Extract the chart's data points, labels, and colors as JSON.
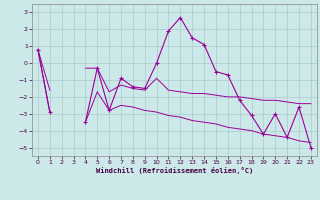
{
  "xlabel": "Windchill (Refroidissement éolien,°C)",
  "x_values": [
    0,
    1,
    2,
    3,
    4,
    5,
    6,
    7,
    8,
    9,
    10,
    11,
    12,
    13,
    14,
    15,
    16,
    17,
    18,
    19,
    20,
    21,
    22,
    23
  ],
  "main_line": [
    0.8,
    -2.9,
    null,
    null,
    -3.5,
    -0.3,
    -2.8,
    -0.9,
    -1.4,
    -1.5,
    0.0,
    1.9,
    2.7,
    1.5,
    1.1,
    -0.5,
    -0.7,
    -2.2,
    -3.1,
    -4.2,
    -3.0,
    -4.4,
    -2.6,
    -5.0
  ],
  "upper_line": [
    0.8,
    -1.6,
    null,
    null,
    -0.3,
    -0.3,
    -1.7,
    -1.3,
    -1.5,
    -1.6,
    -0.9,
    -1.6,
    -1.7,
    -1.8,
    -1.8,
    -1.9,
    -2.0,
    -2.0,
    -2.1,
    -2.2,
    -2.2,
    -2.3,
    -2.4,
    -2.4
  ],
  "lower_line": [
    0.8,
    -2.9,
    null,
    null,
    -3.5,
    -1.7,
    -2.8,
    -2.5,
    -2.6,
    -2.8,
    -2.9,
    -3.1,
    -3.2,
    -3.4,
    -3.5,
    -3.6,
    -3.8,
    -3.9,
    -4.0,
    -4.2,
    -4.3,
    -4.4,
    -4.6,
    -4.7
  ],
  "line_color": "#990099",
  "bg_color": "#cce8e8",
  "grid_color": "#aacccc",
  "ylim": [
    -5.5,
    3.5
  ],
  "yticks": [
    -5,
    -4,
    -3,
    -2,
    -1,
    0,
    1,
    2,
    3
  ],
  "xlim": [
    -0.5,
    23.5
  ]
}
